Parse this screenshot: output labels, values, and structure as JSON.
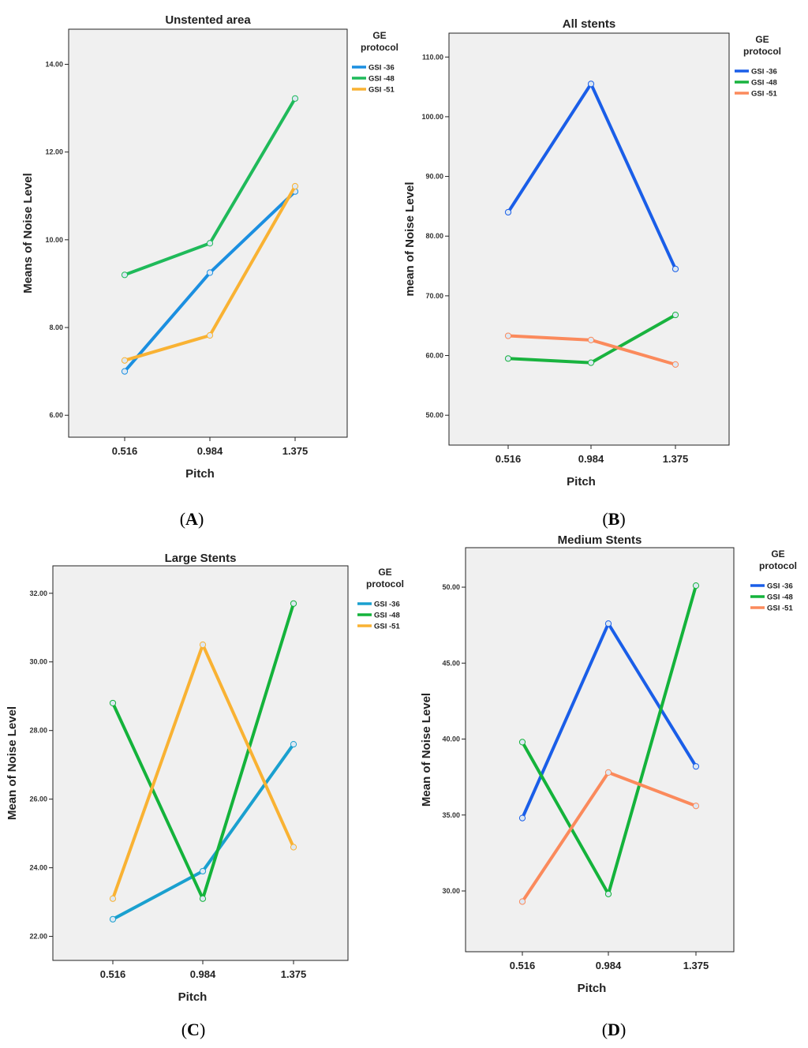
{
  "panel_labels": [
    "A",
    "B",
    "C",
    "D"
  ],
  "chart_data": [
    {
      "type": "line",
      "title": "Unstented area",
      "xlabel": "Pitch",
      "ylabel": "Means of Noise Level",
      "categories": [
        "0.516",
        "0.984",
        "1.375"
      ],
      "ylim": [
        5.5,
        14.8
      ],
      "yticks": [
        "6.00",
        "8.00",
        "10.00",
        "12.00",
        "14.00"
      ],
      "legend_title": [
        "GE",
        "protocol"
      ],
      "series": [
        {
          "name": "GSI -36",
          "color": "#1b8fe0",
          "values": [
            7.0,
            9.25,
            11.1
          ]
        },
        {
          "name": "GSI -48",
          "color": "#1fba5a",
          "values": [
            9.2,
            9.92,
            13.22
          ]
        },
        {
          "name": "GSI -51",
          "color": "#f9b233",
          "values": [
            7.25,
            7.82,
            11.22
          ]
        }
      ]
    },
    {
      "type": "line",
      "title": "All stents",
      "xlabel": "Pitch",
      "ylabel": "mean of Noise Level",
      "categories": [
        "0.516",
        "0.984",
        "1.375"
      ],
      "ylim": [
        45,
        114
      ],
      "yticks": [
        "50.00",
        "60.00",
        "70.00",
        "80.00",
        "90.00",
        "100.00",
        "110.00"
      ],
      "legend_title": [
        "GE",
        "protocol"
      ],
      "series": [
        {
          "name": "GSI -36",
          "color": "#1a5ee8",
          "values": [
            84.0,
            105.5,
            74.5
          ]
        },
        {
          "name": "GSI -48",
          "color": "#19b33f",
          "values": [
            59.5,
            58.8,
            66.8
          ]
        },
        {
          "name": "GSI -51",
          "color": "#fb8a5c",
          "values": [
            63.3,
            62.6,
            58.5
          ]
        }
      ]
    },
    {
      "type": "line",
      "title": "Large Stents",
      "xlabel": "Pitch",
      "ylabel": "Mean of Noise Level",
      "categories": [
        "0.516",
        "0.984",
        "1.375"
      ],
      "ylim": [
        21.3,
        32.8
      ],
      "yticks": [
        "22.00",
        "24.00",
        "26.00",
        "28.00",
        "30.00",
        "32.00"
      ],
      "legend_title": [
        "GE",
        "protocol"
      ],
      "series": [
        {
          "name": "GSI -36",
          "color": "#1aa0cf",
          "values": [
            22.5,
            23.9,
            27.6
          ]
        },
        {
          "name": "GSI -48",
          "color": "#14b33b",
          "values": [
            28.8,
            23.1,
            31.7
          ]
        },
        {
          "name": "GSI -51",
          "color": "#f9b233",
          "values": [
            23.1,
            30.5,
            24.6
          ]
        }
      ]
    },
    {
      "type": "line",
      "title": "Medium Stents",
      "xlabel": "Pitch",
      "ylabel": "Mean of Noise Level",
      "categories": [
        "0.516",
        "0.984",
        "1.375"
      ],
      "ylim": [
        26.0,
        52.6
      ],
      "yticks": [
        "30.00",
        "35.00",
        "40.00",
        "45.00",
        "50.00"
      ],
      "legend_title": [
        "GE",
        "protocol"
      ],
      "series": [
        {
          "name": "GSI -36",
          "color": "#1a5ee8",
          "values": [
            34.8,
            47.6,
            38.2
          ]
        },
        {
          "name": "GSI -48",
          "color": "#14b33b",
          "values": [
            39.8,
            29.8,
            50.1
          ]
        },
        {
          "name": "GSI -51",
          "color": "#fb8a5c",
          "values": [
            29.3,
            37.8,
            35.6
          ]
        }
      ]
    }
  ]
}
